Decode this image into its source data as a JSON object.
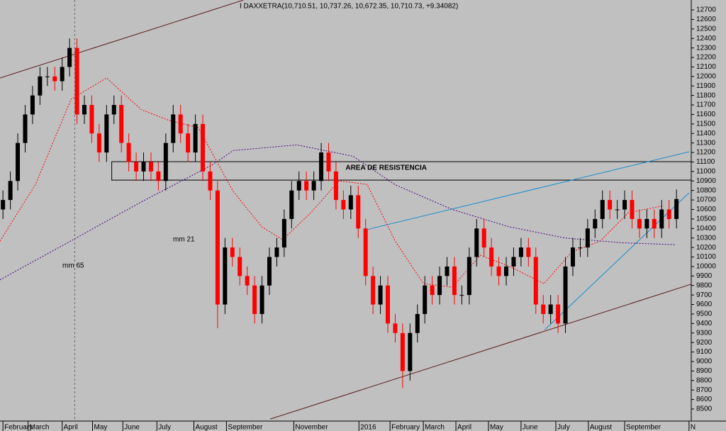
{
  "chart_data": {
    "type": "candlestick",
    "title": "I DAXXETRA(10,710.51, 10,737.26, 10,672.35, 10,710.73, +9.34082)",
    "x": [
      0,
      1,
      2,
      3,
      4,
      5,
      6,
      7,
      8,
      9,
      10,
      11,
      12,
      13,
      14,
      15,
      16,
      17,
      18,
      19,
      20,
      21,
      22,
      23,
      24,
      25,
      26,
      27,
      28,
      29,
      30,
      31,
      32,
      33,
      34,
      35,
      36,
      37,
      38,
      39,
      40,
      41,
      42,
      43,
      44,
      45,
      46,
      47,
      48,
      49,
      50,
      51,
      52,
      53,
      54,
      55,
      56,
      57,
      58,
      59,
      60,
      61,
      62,
      63,
      64,
      65,
      66,
      67,
      68,
      69,
      70,
      71,
      72,
      73,
      74,
      75,
      76,
      77,
      78,
      79,
      80,
      81,
      82,
      83,
      84,
      85,
      86,
      87,
      88,
      89,
      90,
      91
    ],
    "open": [
      10600,
      10700,
      10900,
      11300,
      11600,
      11800,
      12000,
      12000,
      11950,
      12100,
      12300,
      11600,
      11700,
      11400,
      11200,
      11600,
      11700,
      11300,
      11100,
      11000,
      11100,
      11000,
      10900,
      11300,
      11600,
      11400,
      11200,
      11500,
      11000,
      10800,
      9600,
      10200,
      10100,
      9900,
      9800,
      9500,
      9800,
      10100,
      10200,
      10500,
      10800,
      10900,
      10800,
      10900,
      11200,
      11000,
      10700,
      10600,
      10750,
      10400,
      9900,
      9600,
      9800,
      9400,
      9300,
      8900,
      9300,
      9500,
      9800,
      9700,
      9900,
      10000,
      9700,
      9700,
      10100,
      10400,
      10200,
      10000,
      9900,
      10000,
      10100,
      10200,
      10100,
      9600,
      9500,
      9600,
      9400,
      10000,
      10200,
      10200,
      10400,
      10500,
      10700,
      10600,
      10600,
      10700,
      10500,
      10400,
      10500,
      10400,
      10600,
      10500
    ],
    "high": [
      10800,
      11000,
      11400,
      11700,
      11900,
      12100,
      12100,
      12100,
      12200,
      12400,
      12400,
      11800,
      11800,
      11500,
      11700,
      11800,
      11800,
      11400,
      11200,
      11200,
      11200,
      11100,
      11400,
      11700,
      11700,
      11500,
      11600,
      11600,
      11100,
      10900,
      10300,
      10300,
      10200,
      10000,
      9900,
      9900,
      10200,
      10300,
      10600,
      10900,
      11000,
      11000,
      11000,
      11300,
      11300,
      11100,
      10800,
      10850,
      10850,
      10500,
      10000,
      9900,
      9900,
      9500,
      9400,
      9400,
      9600,
      9900,
      9900,
      10000,
      10100,
      10100,
      9800,
      10200,
      10500,
      10500,
      10300,
      10100,
      10100,
      10200,
      10300,
      10300,
      10200,
      9700,
      9700,
      9700,
      10100,
      10300,
      10300,
      10500,
      10600,
      10800,
      10800,
      10700,
      10800,
      10800,
      10600,
      10600,
      10600,
      10700,
      10700,
      10810
    ],
    "low": [
      10500,
      10600,
      10800,
      11200,
      11500,
      11700,
      11900,
      11850,
      11850,
      12000,
      11500,
      11500,
      11300,
      11100,
      11100,
      11500,
      11200,
      11000,
      10900,
      10900,
      10900,
      10800,
      10800,
      11200,
      11300,
      11100,
      11100,
      10900,
      10700,
      9350,
      9500,
      10000,
      9800,
      9700,
      9400,
      9400,
      9700,
      10000,
      10100,
      10400,
      10700,
      10700,
      10700,
      10800,
      10900,
      10600,
      10500,
      10500,
      10300,
      9800,
      9500,
      9500,
      9300,
      9200,
      8720,
      8800,
      9200,
      9400,
      9600,
      9600,
      9800,
      9600,
      9600,
      9600,
      10000,
      10100,
      9900,
      9800,
      9800,
      9900,
      10000,
      10000,
      9500,
      9400,
      9400,
      9300,
      9300,
      9900,
      10100,
      10100,
      10300,
      10400,
      10500,
      10500,
      10500,
      10400,
      10300,
      10300,
      10300,
      10300,
      10400,
      10400
    ],
    "close": [
      10700,
      10900,
      11300,
      11600,
      11800,
      12000,
      12000,
      11950,
      12100,
      12300,
      11600,
      11700,
      11400,
      11200,
      11600,
      11700,
      11300,
      11100,
      11000,
      11100,
      11000,
      10900,
      11300,
      11600,
      11400,
      11200,
      11500,
      11000,
      10800,
      9600,
      10200,
      10100,
      9900,
      9800,
      9500,
      9800,
      10100,
      10200,
      10500,
      10800,
      10900,
      10800,
      10900,
      11200,
      11000,
      10700,
      10600,
      10750,
      10400,
      9900,
      9600,
      9800,
      9400,
      9300,
      8900,
      9300,
      9500,
      9800,
      9700,
      9900,
      10000,
      9700,
      9700,
      10100,
      10400,
      10200,
      10000,
      9900,
      10000,
      10100,
      10200,
      10100,
      9600,
      9500,
      9600,
      9400,
      10000,
      10200,
      10200,
      10400,
      10500,
      10700,
      10600,
      10600,
      10700,
      10500,
      10400,
      10500,
      10400,
      10600,
      10500,
      10710
    ],
    "up_color": "#000000",
    "down_color": "#ff0000",
    "series": [
      {
        "name": "mm 21",
        "color": "#ff0000",
        "label_color": "#800080",
        "x": [
          -0.4,
          4.4,
          9.2,
          14,
          18.7,
          22.5,
          26.4,
          31.1,
          35,
          37.8,
          41.6,
          45.4,
          49.2,
          53,
          56.8,
          60.7,
          64.5,
          68.3,
          73.1,
          76.9,
          80.7,
          84.5,
          89.3
        ],
        "values": [
          10267,
          10864,
          11760,
          11984,
          11650,
          11536,
          11461,
          10790,
          10416,
          10282,
          10566,
          10901,
          10864,
          10267,
          9820,
          9782,
          10118,
          10006,
          9820,
          10155,
          10267,
          10566,
          10640
        ]
      },
      {
        "name": "mm 65",
        "color": "#4b0082",
        "label_color": "#ff0000",
        "x": [
          -0.4,
          9.2,
          18.7,
          28.3,
          31.1,
          39.7,
          47.3,
          53,
          60.7,
          68.3,
          75.9,
          83.6,
          90.8
        ],
        "values": [
          9860,
          10270,
          10680,
          11070,
          11220,
          11280,
          11160,
          10860,
          10600,
          10420,
          10300,
          10250,
          10230
        ]
      }
    ],
    "trendlines": [
      {
        "color": "#5a1a1a",
        "x": [
          -0.4,
          32.5
        ],
        "values": [
          11984,
          12804
        ]
      },
      {
        "color": "#5a1a1a",
        "x": [
          36.1,
          93.2
        ],
        "values": [
          8394,
          9819
        ]
      },
      {
        "color": "#1a8ccc",
        "x": [
          49.1,
          92.7
        ],
        "values": [
          10387,
          11207
        ]
      },
      {
        "color": "#1a8ccc",
        "x": [
          73.2,
          92.7
        ],
        "values": [
          9334,
          10775
        ]
      }
    ],
    "zone": {
      "label": "AREA DE RESISTENCIA",
      "x": [
        14.7,
        93.2
      ],
      "values": [
        10909,
        11103
      ]
    },
    "vline": 9.7,
    "xlim": [
      -0.4,
      93
    ],
    "ylim": [
      8400,
      12800
    ],
    "xticks": [
      {
        "value": 0,
        "label": "February"
      },
      {
        "value": 3.4,
        "label": "March"
      },
      {
        "value": 8,
        "label": "April"
      },
      {
        "value": 12.1,
        "label": "May"
      },
      {
        "value": 16.2,
        "label": "June"
      },
      {
        "value": 20.8,
        "label": "July"
      },
      {
        "value": 25.8,
        "label": "August"
      },
      {
        "value": 30.2,
        "label": "September"
      },
      {
        "value": 39.3,
        "label": "November"
      },
      {
        "value": 48.1,
        "label": "2016"
      },
      {
        "value": 52.3,
        "label": "February"
      },
      {
        "value": 56.8,
        "label": "March"
      },
      {
        "value": 61.2,
        "label": "April"
      },
      {
        "value": 65.6,
        "label": "May"
      },
      {
        "value": 70,
        "label": "June"
      },
      {
        "value": 74.7,
        "label": "July"
      },
      {
        "value": 79.1,
        "label": "August"
      },
      {
        "value": 84,
        "label": "September"
      },
      {
        "value": 92.7,
        "label": "N"
      }
    ],
    "yticks": [
      8500,
      8600,
      8700,
      8800,
      8900,
      9000,
      9100,
      9200,
      9300,
      9400,
      9500,
      9600,
      9700,
      9800,
      9900,
      10000,
      10100,
      10200,
      10300,
      10400,
      10500,
      10600,
      10700,
      10800,
      10900,
      11000,
      11100,
      11200,
      11300,
      11400,
      11500,
      11600,
      11700,
      11800,
      11900,
      12000,
      12100,
      12200,
      12300,
      12400,
      12500,
      12600,
      12700
    ]
  }
}
